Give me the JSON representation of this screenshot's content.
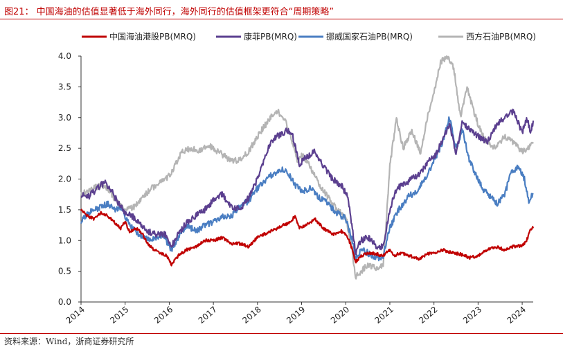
{
  "header": {
    "title": "图21：  中国海油的估值显著低于海外同行，海外同行的估值框架更符合“周期策略”"
  },
  "footer": {
    "source": "资料来源：Wind，浙商证券研究所"
  },
  "colors": {
    "accent": "#c00000"
  },
  "chart_data": {
    "type": "line",
    "title": "",
    "xlabel": "",
    "ylabel": "",
    "ylim": [
      0,
      4.0
    ],
    "yticks": [
      "0.0",
      "0.5",
      "1.0",
      "1.5",
      "2.0",
      "2.5",
      "3.0",
      "3.5",
      "4.0"
    ],
    "xlim": [
      2014.0,
      2024.25
    ],
    "xticks": [
      "2014",
      "2015",
      "2016",
      "2017",
      "2018",
      "2019",
      "2020",
      "2021",
      "2022",
      "2023",
      "2024"
    ],
    "grid": false,
    "legend_position": "top",
    "series": [
      {
        "name": "中国海油港股PB(MRQ)",
        "color": "#c00000",
        "points": [
          [
            2014.0,
            1.5
          ],
          [
            2014.15,
            1.4
          ],
          [
            2014.3,
            1.35
          ],
          [
            2014.45,
            1.45
          ],
          [
            2014.6,
            1.4
          ],
          [
            2014.75,
            1.3
          ],
          [
            2014.9,
            1.2
          ],
          [
            2015.0,
            1.3
          ],
          [
            2015.1,
            1.15
          ],
          [
            2015.25,
            1.2
          ],
          [
            2015.4,
            1.1
          ],
          [
            2015.5,
            0.95
          ],
          [
            2015.65,
            0.85
          ],
          [
            2015.8,
            0.8
          ],
          [
            2015.95,
            0.75
          ],
          [
            2016.05,
            0.6
          ],
          [
            2016.2,
            0.75
          ],
          [
            2016.4,
            0.85
          ],
          [
            2016.6,
            0.9
          ],
          [
            2016.8,
            1.0
          ],
          [
            2017.0,
            1.0
          ],
          [
            2017.2,
            1.05
          ],
          [
            2017.4,
            0.95
          ],
          [
            2017.6,
            0.95
          ],
          [
            2017.8,
            0.9
          ],
          [
            2018.0,
            1.05
          ],
          [
            2018.15,
            1.1
          ],
          [
            2018.3,
            1.15
          ],
          [
            2018.45,
            1.2
          ],
          [
            2018.6,
            1.25
          ],
          [
            2018.75,
            1.3
          ],
          [
            2018.85,
            1.4
          ],
          [
            2018.95,
            1.2
          ],
          [
            2019.1,
            1.25
          ],
          [
            2019.3,
            1.35
          ],
          [
            2019.5,
            1.2
          ],
          [
            2019.7,
            1.1
          ],
          [
            2019.9,
            1.15
          ],
          [
            2020.05,
            1.05
          ],
          [
            2020.15,
            0.85
          ],
          [
            2020.22,
            0.65
          ],
          [
            2020.35,
            0.75
          ],
          [
            2020.5,
            0.8
          ],
          [
            2020.7,
            0.78
          ],
          [
            2020.85,
            0.75
          ],
          [
            2021.0,
            0.85
          ],
          [
            2021.1,
            0.75
          ],
          [
            2021.25,
            0.8
          ],
          [
            2021.45,
            0.75
          ],
          [
            2021.65,
            0.7
          ],
          [
            2021.85,
            0.78
          ],
          [
            2022.0,
            0.8
          ],
          [
            2022.2,
            0.85
          ],
          [
            2022.4,
            0.8
          ],
          [
            2022.6,
            0.78
          ],
          [
            2022.8,
            0.72
          ],
          [
            2023.0,
            0.75
          ],
          [
            2023.2,
            0.85
          ],
          [
            2023.4,
            0.9
          ],
          [
            2023.6,
            0.85
          ],
          [
            2023.8,
            0.9
          ],
          [
            2024.0,
            0.92
          ],
          [
            2024.1,
            1.0
          ],
          [
            2024.2,
            1.2
          ],
          [
            2024.25,
            1.2
          ]
        ]
      },
      {
        "name": "康菲PB(MRQ)",
        "color": "#5b3f8f",
        "points": [
          [
            2014.0,
            1.75
          ],
          [
            2014.15,
            1.7
          ],
          [
            2014.3,
            1.8
          ],
          [
            2014.45,
            1.9
          ],
          [
            2014.55,
            1.95
          ],
          [
            2014.7,
            1.8
          ],
          [
            2014.85,
            1.6
          ],
          [
            2015.0,
            1.45
          ],
          [
            2015.15,
            1.4
          ],
          [
            2015.3,
            1.3
          ],
          [
            2015.5,
            1.15
          ],
          [
            2015.7,
            1.1
          ],
          [
            2015.9,
            1.1
          ],
          [
            2016.05,
            0.9
          ],
          [
            2016.2,
            1.1
          ],
          [
            2016.4,
            1.3
          ],
          [
            2016.6,
            1.4
          ],
          [
            2016.8,
            1.5
          ],
          [
            2017.0,
            1.65
          ],
          [
            2017.2,
            1.75
          ],
          [
            2017.4,
            1.55
          ],
          [
            2017.6,
            1.5
          ],
          [
            2017.8,
            1.7
          ],
          [
            2018.0,
            2.0
          ],
          [
            2018.15,
            2.3
          ],
          [
            2018.3,
            2.6
          ],
          [
            2018.45,
            2.7
          ],
          [
            2018.6,
            2.75
          ],
          [
            2018.7,
            2.8
          ],
          [
            2018.8,
            2.7
          ],
          [
            2018.95,
            2.25
          ],
          [
            2019.1,
            2.35
          ],
          [
            2019.3,
            2.45
          ],
          [
            2019.5,
            2.2
          ],
          [
            2019.7,
            2.0
          ],
          [
            2019.9,
            1.9
          ],
          [
            2020.05,
            1.7
          ],
          [
            2020.15,
            1.2
          ],
          [
            2020.22,
            0.8
          ],
          [
            2020.35,
            1.0
          ],
          [
            2020.5,
            1.05
          ],
          [
            2020.7,
            0.9
          ],
          [
            2020.85,
            0.9
          ],
          [
            2021.0,
            1.5
          ],
          [
            2021.15,
            1.85
          ],
          [
            2021.3,
            1.9
          ],
          [
            2021.5,
            2.0
          ],
          [
            2021.7,
            2.1
          ],
          [
            2021.9,
            2.3
          ],
          [
            2022.05,
            2.4
          ],
          [
            2022.2,
            2.65
          ],
          [
            2022.35,
            2.9
          ],
          [
            2022.5,
            2.4
          ],
          [
            2022.65,
            2.95
          ],
          [
            2022.8,
            2.8
          ],
          [
            2023.0,
            2.7
          ],
          [
            2023.2,
            2.6
          ],
          [
            2023.4,
            2.85
          ],
          [
            2023.6,
            3.0
          ],
          [
            2023.8,
            3.1
          ],
          [
            2024.0,
            2.75
          ],
          [
            2024.1,
            3.0
          ],
          [
            2024.2,
            2.75
          ],
          [
            2024.25,
            2.95
          ]
        ]
      },
      {
        "name": "挪威国家石油PB(MRQ)",
        "color": "#4a7ec2",
        "points": [
          [
            2014.0,
            1.3
          ],
          [
            2014.15,
            1.45
          ],
          [
            2014.3,
            1.5
          ],
          [
            2014.45,
            1.55
          ],
          [
            2014.6,
            1.6
          ],
          [
            2014.75,
            1.5
          ],
          [
            2014.9,
            1.55
          ],
          [
            2015.0,
            1.4
          ],
          [
            2015.1,
            1.25
          ],
          [
            2015.25,
            1.15
          ],
          [
            2015.4,
            1.05
          ],
          [
            2015.55,
            1.0
          ],
          [
            2015.7,
            1.05
          ],
          [
            2015.85,
            1.1
          ],
          [
            2016.05,
            0.85
          ],
          [
            2016.2,
            1.05
          ],
          [
            2016.4,
            1.25
          ],
          [
            2016.6,
            1.15
          ],
          [
            2016.8,
            1.25
          ],
          [
            2017.0,
            1.3
          ],
          [
            2017.2,
            1.4
          ],
          [
            2017.4,
            1.4
          ],
          [
            2017.6,
            1.55
          ],
          [
            2017.8,
            1.65
          ],
          [
            2018.0,
            1.85
          ],
          [
            2018.2,
            2.0
          ],
          [
            2018.4,
            2.1
          ],
          [
            2018.55,
            2.15
          ],
          [
            2018.7,
            2.1
          ],
          [
            2018.85,
            1.9
          ],
          [
            2019.0,
            1.8
          ],
          [
            2019.2,
            1.85
          ],
          [
            2019.4,
            1.7
          ],
          [
            2019.6,
            1.6
          ],
          [
            2019.8,
            1.45
          ],
          [
            2020.0,
            1.35
          ],
          [
            2020.15,
            1.0
          ],
          [
            2020.22,
            0.7
          ],
          [
            2020.35,
            0.85
          ],
          [
            2020.5,
            0.8
          ],
          [
            2020.7,
            0.7
          ],
          [
            2020.85,
            0.75
          ],
          [
            2021.0,
            1.2
          ],
          [
            2021.2,
            1.5
          ],
          [
            2021.4,
            1.7
          ],
          [
            2021.6,
            1.8
          ],
          [
            2021.8,
            2.0
          ],
          [
            2022.0,
            2.3
          ],
          [
            2022.2,
            2.6
          ],
          [
            2022.35,
            3.0
          ],
          [
            2022.5,
            2.5
          ],
          [
            2022.65,
            2.8
          ],
          [
            2022.8,
            2.3
          ],
          [
            2023.0,
            2.0
          ],
          [
            2023.1,
            1.85
          ],
          [
            2023.3,
            1.7
          ],
          [
            2023.45,
            1.6
          ],
          [
            2023.6,
            1.75
          ],
          [
            2023.75,
            2.1
          ],
          [
            2023.9,
            2.2
          ],
          [
            2024.05,
            2.0
          ],
          [
            2024.15,
            1.65
          ],
          [
            2024.25,
            1.75
          ]
        ]
      },
      {
        "name": "西方石油PB(MRQ)",
        "color": "#b4b4b4",
        "points": [
          [
            2014.0,
            1.75
          ],
          [
            2014.15,
            1.8
          ],
          [
            2014.3,
            1.85
          ],
          [
            2014.45,
            1.9
          ],
          [
            2014.6,
            1.85
          ],
          [
            2014.75,
            1.7
          ],
          [
            2014.9,
            1.55
          ],
          [
            2015.0,
            1.5
          ],
          [
            2015.2,
            1.55
          ],
          [
            2015.4,
            1.7
          ],
          [
            2015.6,
            1.85
          ],
          [
            2015.8,
            1.95
          ],
          [
            2016.0,
            2.05
          ],
          [
            2016.15,
            2.25
          ],
          [
            2016.3,
            2.45
          ],
          [
            2016.5,
            2.5
          ],
          [
            2016.7,
            2.45
          ],
          [
            2016.9,
            2.55
          ],
          [
            2017.0,
            2.5
          ],
          [
            2017.2,
            2.4
          ],
          [
            2017.4,
            2.3
          ],
          [
            2017.6,
            2.3
          ],
          [
            2017.8,
            2.45
          ],
          [
            2018.0,
            2.7
          ],
          [
            2018.15,
            2.85
          ],
          [
            2018.3,
            3.0
          ],
          [
            2018.45,
            3.1
          ],
          [
            2018.6,
            3.0
          ],
          [
            2018.75,
            2.7
          ],
          [
            2018.9,
            2.3
          ],
          [
            2019.0,
            2.4
          ],
          [
            2019.2,
            2.2
          ],
          [
            2019.4,
            1.9
          ],
          [
            2019.6,
            1.7
          ],
          [
            2019.8,
            1.5
          ],
          [
            2020.0,
            1.4
          ],
          [
            2020.15,
            0.8
          ],
          [
            2020.22,
            0.4
          ],
          [
            2020.35,
            0.5
          ],
          [
            2020.5,
            0.6
          ],
          [
            2020.7,
            0.55
          ],
          [
            2020.85,
            0.6
          ],
          [
            2021.0,
            2.2
          ],
          [
            2021.15,
            3.0
          ],
          [
            2021.3,
            2.5
          ],
          [
            2021.5,
            2.8
          ],
          [
            2021.7,
            2.4
          ],
          [
            2021.85,
            3.0
          ],
          [
            2022.0,
            3.4
          ],
          [
            2022.15,
            3.9
          ],
          [
            2022.3,
            4.0
          ],
          [
            2022.45,
            3.8
          ],
          [
            2022.6,
            3.0
          ],
          [
            2022.75,
            3.5
          ],
          [
            2022.9,
            3.1
          ],
          [
            2023.05,
            2.8
          ],
          [
            2023.2,
            2.6
          ],
          [
            2023.4,
            2.5
          ],
          [
            2023.6,
            2.7
          ],
          [
            2023.8,
            2.6
          ],
          [
            2024.0,
            2.45
          ],
          [
            2024.15,
            2.5
          ],
          [
            2024.25,
            2.6
          ]
        ]
      }
    ]
  }
}
